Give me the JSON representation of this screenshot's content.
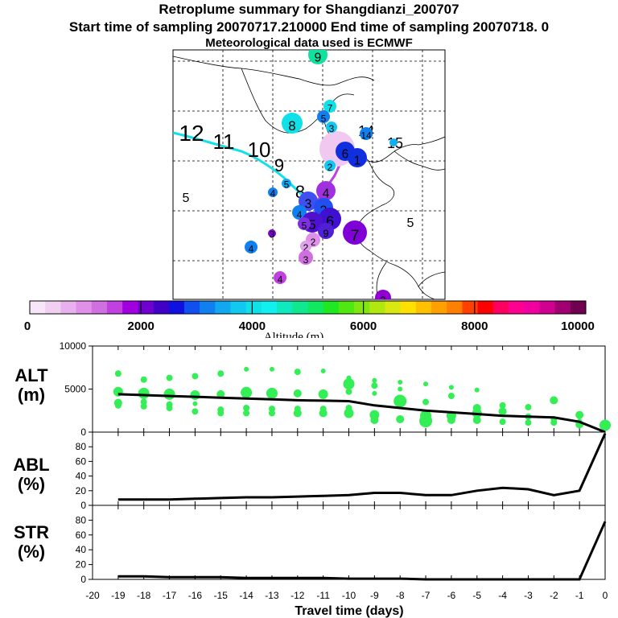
{
  "title": {
    "line1": "Retroplume summary for Shangdianzi_200707",
    "line2": "Start time of sampling 20070717.210000     End time of sampling 20070718.     0",
    "line3": "Meteorological data used is ECMWF"
  },
  "colorbar": {
    "tick_labels": [
      "0",
      "2000",
      "4000",
      "6000",
      "8000",
      "10000"
    ],
    "label": "Altitude (m)",
    "colors": [
      "#f7e6f7",
      "#f0cff0",
      "#e8b0ec",
      "#e090e8",
      "#d070e0",
      "#c040e0",
      "#a000e0",
      "#7000d0",
      "#4000c8",
      "#1010e0",
      "#1050f0",
      "#1080f0",
      "#10a8f0",
      "#10c8f0",
      "#10e0e8",
      "#10f0f0",
      "#10e8c0",
      "#10e890",
      "#10e860",
      "#20e820",
      "#50e810",
      "#80e810",
      "#b0e810",
      "#d8e810",
      "#ffe000",
      "#ffc000",
      "#ffa000",
      "#ff8000",
      "#ff4000",
      "#ff0000",
      "#ff0060",
      "#ff0090",
      "#f000a0",
      "#d00090",
      "#a00070",
      "#700050"
    ]
  },
  "map": {
    "labels": [
      {
        "t": "12",
        "x": 238,
        "y": 175,
        "fs": 28,
        "serif": true
      },
      {
        "t": "11",
        "x": 278,
        "y": 185,
        "fs": 26,
        "serif": true
      },
      {
        "t": "10",
        "x": 322,
        "y": 195,
        "fs": 26,
        "serif": true
      },
      {
        "t": "9",
        "x": 347,
        "y": 213,
        "fs": 22,
        "serif": true
      },
      {
        "t": "8",
        "x": 373,
        "y": 246,
        "fs": 22,
        "serif": true
      },
      {
        "t": "7",
        "x": 387,
        "y": 256,
        "fs": 18,
        "serif": true
      },
      {
        "t": "5",
        "x": 231,
        "y": 251,
        "fs": 16,
        "serif": true
      },
      {
        "t": "5",
        "x": 510,
        "y": 282,
        "fs": 16,
        "serif": true
      },
      {
        "t": "15",
        "x": 491,
        "y": 184,
        "fs": 18,
        "serif": true
      },
      {
        "t": "14",
        "x": 455,
        "y": 169,
        "fs": 18,
        "serif": true
      }
    ],
    "plume": [
      {
        "x": 419,
        "y": 185,
        "r": 22,
        "color": "#f0c8f0"
      },
      {
        "x": 429,
        "y": 188,
        "r": 12,
        "color": "#1030e0",
        "label": "6"
      },
      {
        "x": 444,
        "y": 196,
        "r": 12,
        "color": "#1030e0",
        "label": "1"
      },
      {
        "x": 455,
        "y": 166,
        "r": 8,
        "color": "#1080f0",
        "label": "14"
      },
      {
        "x": 489,
        "y": 177,
        "r": 5,
        "color": "#10b0f0"
      },
      {
        "x": 395,
        "y": 68,
        "r": 12,
        "color": "#10e0a0",
        "label": "9"
      },
      {
        "x": 410,
        "y": 132,
        "r": 8,
        "color": "#10e0e8",
        "label": "7"
      },
      {
        "x": 402,
        "y": 145,
        "r": 8,
        "color": "#1080f0",
        "label": "5"
      },
      {
        "x": 412,
        "y": 158,
        "r": 7,
        "color": "#10c8f0",
        "label": "3"
      },
      {
        "x": 363,
        "y": 153,
        "r": 13,
        "color": "#10e0e8",
        "label": "8"
      },
      {
        "x": 410,
        "y": 206,
        "r": 7,
        "color": "#10c8f0",
        "label": "2"
      },
      {
        "x": 356,
        "y": 228,
        "r": 6,
        "color": "#10a8f0",
        "label": "5"
      },
      {
        "x": 339,
        "y": 239,
        "r": 6,
        "color": "#1080f0",
        "label": "4"
      },
      {
        "x": 405,
        "y": 237,
        "r": 12,
        "color": "#a030e0",
        "label": "4"
      },
      {
        "x": 383,
        "y": 250,
        "r": 12,
        "color": "#4050f0",
        "label": "3"
      },
      {
        "x": 402,
        "y": 258,
        "r": 12,
        "color": "#2050f0",
        "label": "2"
      },
      {
        "x": 372,
        "y": 264,
        "r": 9,
        "color": "#1080f0",
        "label": "4"
      },
      {
        "x": 410,
        "y": 272,
        "r": 14,
        "color": "#4010d0",
        "label": "6"
      },
      {
        "x": 388,
        "y": 276,
        "r": 13,
        "color": "#5010d0",
        "label": "5"
      },
      {
        "x": 405,
        "y": 287,
        "r": 10,
        "color": "#5020d8",
        "label": "9"
      },
      {
        "x": 378,
        "y": 278,
        "r": 8,
        "color": "#8030e0",
        "label": "5"
      },
      {
        "x": 389,
        "y": 298,
        "r": 9,
        "color": "#e090e8",
        "label": "2"
      },
      {
        "x": 441,
        "y": 289,
        "r": 15,
        "color": "#8000d8",
        "label": "7"
      },
      {
        "x": 338,
        "y": 290,
        "r": 5,
        "color": "#8000d8",
        "label": "3"
      },
      {
        "x": 312,
        "y": 307,
        "r": 8,
        "color": "#1080f0",
        "label": "4"
      },
      {
        "x": 380,
        "y": 306,
        "r": 7,
        "color": "#e0a0ec",
        "label": "2"
      },
      {
        "x": 380,
        "y": 320,
        "r": 9,
        "color": "#d070e0",
        "label": "3"
      },
      {
        "x": 348,
        "y": 345,
        "r": 8,
        "color": "#c040e0",
        "label": "4"
      },
      {
        "x": 476,
        "y": 370,
        "r": 10,
        "color": "#9000d0",
        "label": "2"
      }
    ]
  },
  "axes": {
    "alt_label": "ALT\n(m)",
    "abl_label": "ABL\n(%)",
    "str_label": "STR\n(%)",
    "xlabel": "Travel time (days)",
    "x_ticks": [
      "-20",
      "-19",
      "-18",
      "-17",
      "-16",
      "-15",
      "-14",
      "-13",
      "-12",
      "-11",
      "-10",
      "-9",
      "-8",
      "-7",
      "-6",
      "-5",
      "-4",
      "-3",
      "-2",
      "-1",
      "0"
    ],
    "alt_ticks": [
      "0",
      "5000",
      "10000"
    ],
    "pct_ticks": [
      "0",
      "20",
      "40",
      "60",
      "80"
    ]
  },
  "chart_data": [
    {
      "type": "line",
      "title": "ALT",
      "xlabel": "Travel time (days)",
      "ylabel": "ALT (m)",
      "xlim": [
        -20,
        0
      ],
      "ylim": [
        0,
        10000
      ],
      "series": [
        {
          "name": "mean altitude",
          "x": [
            -19,
            -18,
            -17,
            -16,
            -15,
            -14,
            -13,
            -12,
            -11,
            -10,
            -9,
            -8,
            -7,
            -6,
            -5,
            -4,
            -3,
            -2,
            -1,
            0
          ],
          "values": [
            4400,
            4300,
            4200,
            4100,
            4000,
            3900,
            3800,
            3700,
            3650,
            3600,
            3100,
            2800,
            2500,
            2300,
            2100,
            1900,
            1800,
            1700,
            1200,
            0
          ]
        },
        {
          "name": "altitude distribution points",
          "type": "scatter",
          "points": [
            [
              -19,
              6800,
              4
            ],
            [
              -19,
              4700,
              6
            ],
            [
              -19,
              3400,
              5
            ],
            [
              -19,
              3100,
              4
            ],
            [
              -18,
              6100,
              4
            ],
            [
              -18,
              4500,
              7
            ],
            [
              -18,
              3500,
              4
            ],
            [
              -18,
              3000,
              4
            ],
            [
              -17,
              6300,
              4
            ],
            [
              -17,
              4400,
              7
            ],
            [
              -17,
              3200,
              4
            ],
            [
              -17,
              2800,
              4
            ],
            [
              -16,
              6500,
              4
            ],
            [
              -16,
              4300,
              6
            ],
            [
              -16,
              3300,
              3
            ],
            [
              -16,
              2400,
              4
            ],
            [
              -15,
              6800,
              4
            ],
            [
              -15,
              4400,
              5
            ],
            [
              -15,
              2600,
              4
            ],
            [
              -15,
              2200,
              4
            ],
            [
              -14,
              7300,
              3
            ],
            [
              -14,
              4600,
              7
            ],
            [
              -14,
              2800,
              4
            ],
            [
              -14,
              2200,
              4
            ],
            [
              -13,
              7300,
              3
            ],
            [
              -13,
              4500,
              7
            ],
            [
              -13,
              2700,
              4
            ],
            [
              -13,
              2200,
              4
            ],
            [
              -12,
              7000,
              4
            ],
            [
              -12,
              4500,
              5
            ],
            [
              -12,
              2700,
              4
            ],
            [
              -12,
              2200,
              5
            ],
            [
              -11,
              7100,
              3
            ],
            [
              -11,
              4400,
              6
            ],
            [
              -11,
              2700,
              4
            ],
            [
              -11,
              2200,
              5
            ],
            [
              -10,
              6300,
              3
            ],
            [
              -10,
              5600,
              7
            ],
            [
              -10,
              4700,
              4
            ],
            [
              -10,
              2800,
              4
            ],
            [
              -10,
              2200,
              6
            ],
            [
              -9,
              6000,
              3
            ],
            [
              -9,
              5400,
              4
            ],
            [
              -9,
              4500,
              3
            ],
            [
              -9,
              2000,
              6
            ],
            [
              -9,
              1400,
              5
            ],
            [
              -8,
              5800,
              3
            ],
            [
              -8,
              5000,
              3
            ],
            [
              -8,
              3600,
              8
            ],
            [
              -8,
              1500,
              5
            ],
            [
              -7,
              5600,
              3
            ],
            [
              -7,
              3500,
              4
            ],
            [
              -7,
              1900,
              7
            ],
            [
              -7,
              1300,
              8
            ],
            [
              -6,
              5200,
              3
            ],
            [
              -6,
              4200,
              4
            ],
            [
              -6,
              1900,
              6
            ],
            [
              -6,
              1400,
              5
            ],
            [
              -5,
              4900,
              3
            ],
            [
              -5,
              2800,
              5
            ],
            [
              -5,
              2200,
              6
            ],
            [
              -5,
              1400,
              5
            ],
            [
              -4,
              3100,
              4
            ],
            [
              -4,
              2400,
              5
            ],
            [
              -4,
              1200,
              4
            ],
            [
              -3,
              2900,
              4
            ],
            [
              -3,
              1800,
              4
            ],
            [
              -3,
              1100,
              4
            ],
            [
              -2,
              3700,
              5
            ],
            [
              -2,
              1500,
              4
            ],
            [
              -2,
              1100,
              4
            ],
            [
              -1,
              2000,
              5
            ],
            [
              -1,
              1300,
              3
            ],
            [
              -1,
              900,
              5
            ],
            [
              0,
              800,
              7
            ]
          ]
        }
      ]
    },
    {
      "type": "line",
      "title": "ABL",
      "ylabel": "ABL (%)",
      "xlim": [
        -20,
        0
      ],
      "ylim": [
        0,
        100
      ],
      "series": [
        {
          "name": "ABL",
          "x": [
            -19,
            -18,
            -17,
            -16,
            -15,
            -14,
            -13,
            -12,
            -11,
            -10,
            -9,
            -8,
            -7,
            -6,
            -5,
            -4,
            -3,
            -2,
            -1,
            0
          ],
          "values": [
            8,
            8,
            8,
            9,
            10,
            11,
            11,
            12,
            13,
            14,
            17,
            17,
            14,
            14,
            20,
            24,
            22,
            14,
            20,
            98
          ]
        }
      ]
    },
    {
      "type": "line",
      "title": "STR",
      "xlabel": "Travel time (days)",
      "ylabel": "STR (%)",
      "xlim": [
        -20,
        0
      ],
      "ylim": [
        0,
        100
      ],
      "series": [
        {
          "name": "STR",
          "x": [
            -19,
            -18,
            -17,
            -16,
            -15,
            -14,
            -13,
            -12,
            -11,
            -10,
            -9,
            -8,
            -7,
            -6,
            -5,
            -4,
            -3,
            -2,
            -1,
            0
          ],
          "values": [
            4,
            4,
            3,
            3,
            3,
            2,
            2,
            2,
            2,
            1,
            1,
            1,
            0,
            0,
            0,
            0,
            0,
            0,
            0,
            78
          ]
        }
      ]
    }
  ]
}
